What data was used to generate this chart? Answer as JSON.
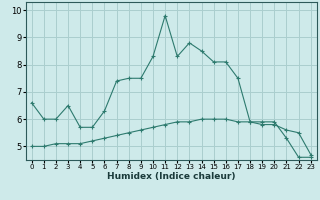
{
  "xlabel": "Humidex (Indice chaleur)",
  "ylabel": "",
  "background_color": "#ceeaea",
  "grid_color": "#aacece",
  "line_color": "#2d7a6e",
  "x_ticks": [
    0,
    1,
    2,
    3,
    4,
    5,
    6,
    7,
    8,
    9,
    10,
    11,
    12,
    13,
    14,
    15,
    16,
    17,
    18,
    19,
    20,
    21,
    22,
    23
  ],
  "ylim": [
    4.5,
    10.3
  ],
  "xlim": [
    -0.5,
    23.5
  ],
  "yticks": [
    5,
    6,
    7,
    8,
    9,
    10
  ],
  "line1_x": [
    0,
    1,
    2,
    3,
    4,
    5,
    6,
    7,
    8,
    9,
    10,
    11,
    12,
    13,
    14,
    15,
    16,
    17,
    18,
    19,
    20,
    21,
    22,
    23
  ],
  "line1_y": [
    6.6,
    6.0,
    6.0,
    6.5,
    5.7,
    5.7,
    6.3,
    7.4,
    7.5,
    7.5,
    8.3,
    9.8,
    8.3,
    8.8,
    8.5,
    8.1,
    8.1,
    7.5,
    5.9,
    5.9,
    5.9,
    5.3,
    4.6,
    4.6
  ],
  "line2_x": [
    0,
    1,
    2,
    3,
    4,
    5,
    6,
    7,
    8,
    9,
    10,
    11,
    12,
    13,
    14,
    15,
    16,
    17,
    18,
    19,
    20,
    21,
    22,
    23
  ],
  "line2_y": [
    5.0,
    5.0,
    5.1,
    5.1,
    5.1,
    5.2,
    5.3,
    5.4,
    5.5,
    5.6,
    5.7,
    5.8,
    5.9,
    5.9,
    6.0,
    6.0,
    6.0,
    5.9,
    5.9,
    5.8,
    5.8,
    5.6,
    5.5,
    4.7
  ],
  "marker": "+"
}
